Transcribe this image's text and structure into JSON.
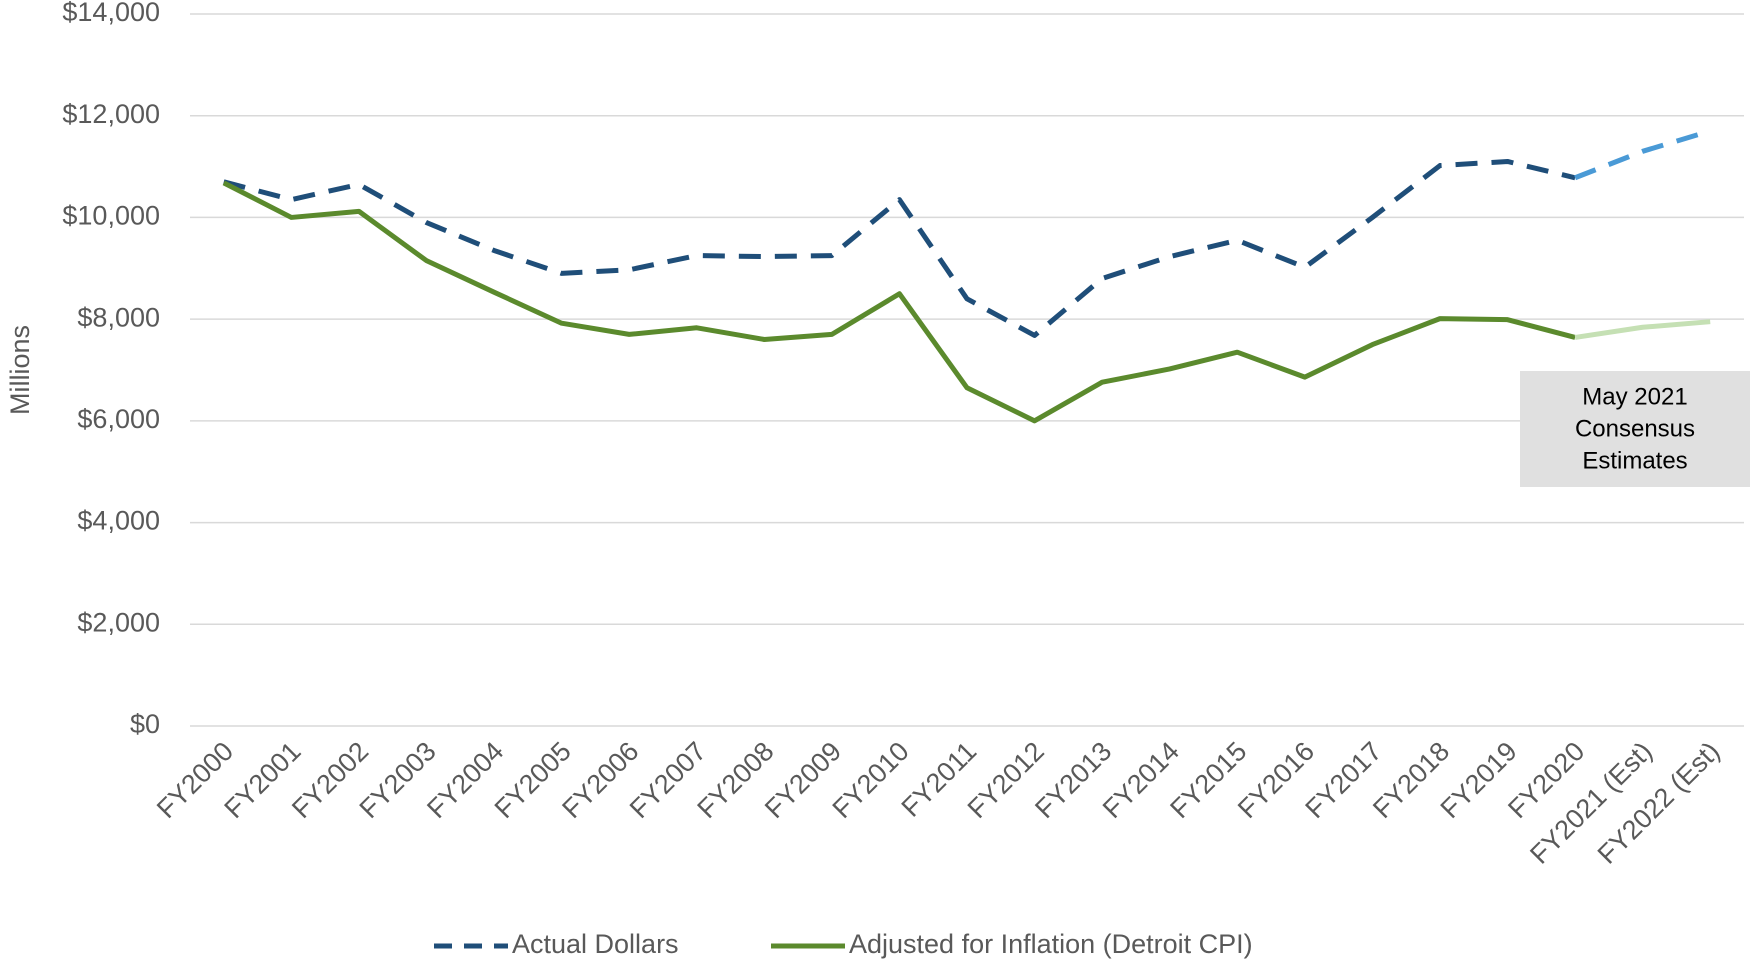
{
  "chart_data": {
    "type": "line",
    "y_label": "Millions",
    "categories": [
      "FY2000",
      "FY2001",
      "FY2002",
      "FY2003",
      "FY2004",
      "FY2005",
      "FY2006",
      "FY2007",
      "FY2008",
      "FY2009",
      "FY2010",
      "FY2011",
      "FY2012",
      "FY2013",
      "FY2014",
      "FY2015",
      "FY2016",
      "FY2017",
      "FY2018",
      "FY2019",
      "FY2020",
      "FY2021 (Est)",
      "FY2022 (Est)"
    ],
    "series": [
      {
        "name": "Actual Dollars",
        "color": "#1f4e79",
        "estimate_color": "#4a9ad6",
        "dash": true,
        "values": [
          10700,
          10350,
          10650,
          9900,
          9350,
          8900,
          8970,
          9250,
          9230,
          9250,
          10350,
          8400,
          7680,
          8800,
          9230,
          9550,
          9020,
          10000,
          11020,
          11100,
          10780,
          11300,
          11700
        ]
      },
      {
        "name": "Adjusted for Inflation (Detroit CPI)",
        "color": "#5b8a2d",
        "estimate_color": "#c5e0b4",
        "dash": false,
        "values": [
          10680,
          10000,
          10120,
          9150,
          8530,
          7920,
          7700,
          7830,
          7600,
          7700,
          8500,
          6650,
          6000,
          6760,
          7020,
          7350,
          6860,
          7500,
          8010,
          7990,
          7640,
          7840,
          7950
        ]
      }
    ],
    "estimate_start": "FY2020",
    "annotation": [
      "May 2021",
      "Consensus",
      "Estimates"
    ],
    "ylim": [
      0,
      14000
    ],
    "yticks": [
      {
        "value": 0,
        "label": "$0"
      },
      {
        "value": 2000,
        "label": "$2,000"
      },
      {
        "value": 4000,
        "label": "$4,000"
      },
      {
        "value": 6000,
        "label": "$6,000"
      },
      {
        "value": 8000,
        "label": "$8,000"
      },
      {
        "value": 10000,
        "label": "$10,000"
      },
      {
        "value": 12000,
        "label": "$12,000"
      },
      {
        "value": 14000,
        "label": "$14,000"
      }
    ],
    "grid": true
  }
}
